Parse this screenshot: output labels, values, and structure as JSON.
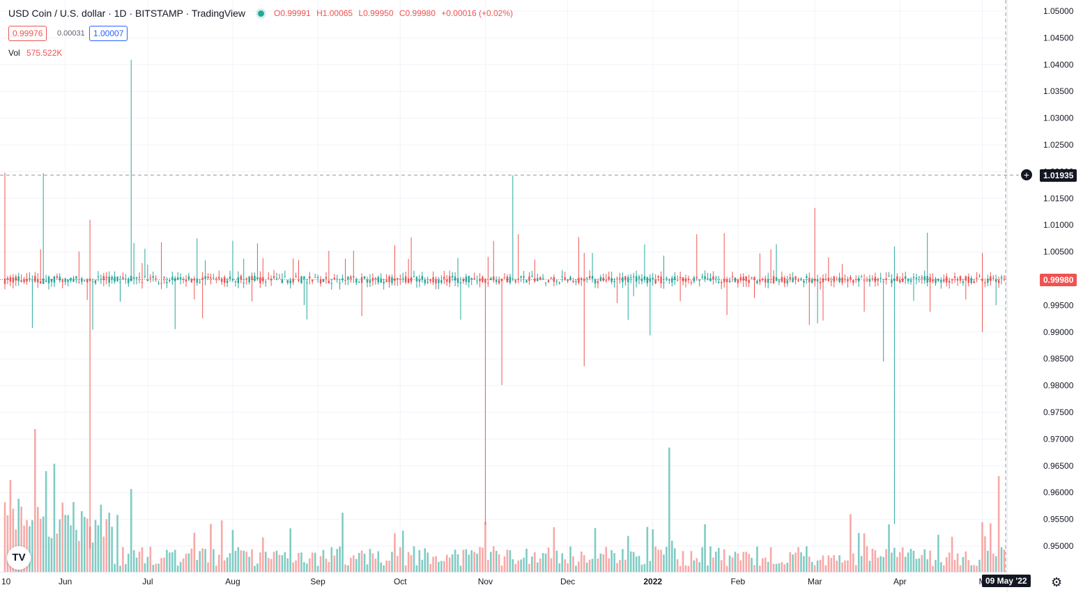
{
  "header": {
    "symbol_title": "USD Coin / U.S. dollar · 1D · BITSTAMP · TradingView",
    "status_color": "#26a69a",
    "open": "O0.99991",
    "high": "H1.00065",
    "low": "L0.99950",
    "close": "C0.99980",
    "change": "+0.00016 (+0.02%)",
    "bid": "0.99976",
    "spread": "0.00031",
    "ask": "1.00007",
    "volume_label": "Vol",
    "volume_value": "575.522K"
  },
  "crosshair": {
    "price_label": "1.01935",
    "price": 1.01935,
    "date_label": "09 May '22"
  },
  "last_price": {
    "label": "0.99980",
    "value": 0.9998
  },
  "icons": {
    "logo": "tradingview-logo-icon",
    "settings": "gear-icon",
    "add": "plus-circle-icon"
  },
  "colors": {
    "up": "#26a69a",
    "down": "#ef5350",
    "up_volume": "#80cbc4",
    "down_volume": "#f7a9a7"
  },
  "chart_data": {
    "type": "candlestick",
    "title": "USD Coin / U.S. dollar · 1D · BITSTAMP",
    "y_axis": {
      "ticks": [
        "1.05000",
        "1.04500",
        "1.04000",
        "1.03500",
        "1.03000",
        "1.02500",
        "1.02000",
        "1.01500",
        "1.01000",
        "1.00500",
        "1.00000",
        "0.99500",
        "0.99000",
        "0.98500",
        "0.98000",
        "0.97500",
        "0.97000",
        "0.96500",
        "0.96000",
        "0.95500",
        "0.95000"
      ],
      "range": [
        0.9465,
        1.0525
      ]
    },
    "x_axis": {
      "ticks": [
        "10",
        "Jun",
        "Jul",
        "Aug",
        "Sep",
        "Oct",
        "Nov",
        "Dec",
        "2022",
        "Feb",
        "Mar",
        "Apr",
        "M"
      ],
      "range": [
        "2021-05-10",
        "2022-05-09"
      ]
    },
    "notable_candles": [
      {
        "date": "2021-05-10",
        "open": 1.0,
        "high": 1.0198,
        "low": 0.998,
        "close": 0.999
      },
      {
        "date": "2021-05-24",
        "open": 0.999,
        "high": 1.0197,
        "low": 0.999,
        "close": 1.0
      },
      {
        "date": "2021-06-10",
        "open": 1.0,
        "high": 1.011,
        "low": 0.9495,
        "close": 0.9995
      },
      {
        "date": "2021-06-11",
        "open": 0.9995,
        "high": 1.0,
        "low": 0.9905,
        "close": 0.9995
      },
      {
        "date": "2021-06-25",
        "open": 0.9995,
        "high": 1.0409,
        "low": 0.9995,
        "close": 1.0005
      },
      {
        "date": "2021-11-01",
        "open": 1.0,
        "high": 1.0,
        "low": 0.9539,
        "close": 0.9992
      },
      {
        "date": "2021-11-07",
        "open": 1.0,
        "high": 1.0,
        "low": 0.9801,
        "close": 0.9995
      },
      {
        "date": "2021-11-11",
        "open": 1.0,
        "high": 1.0193,
        "low": 0.9995,
        "close": 1.0
      },
      {
        "date": "2021-12-07",
        "open": 1.0,
        "high": 1.0048,
        "low": 0.9836,
        "close": 0.9995
      },
      {
        "date": "2022-03-01",
        "open": 1.0,
        "high": 1.0132,
        "low": 0.9985,
        "close": 0.9995
      },
      {
        "date": "2022-03-26",
        "open": 0.9995,
        "high": 1.0,
        "low": 0.9845,
        "close": 0.9995
      },
      {
        "date": "2022-03-30",
        "open": 0.9995,
        "high": 1.006,
        "low": 0.9541,
        "close": 1.0
      },
      {
        "date": "2022-05-01",
        "open": 1.0,
        "high": 1.0048,
        "low": 0.99,
        "close": 0.9995
      },
      {
        "date": "2022-05-09",
        "open": 0.99991,
        "high": 1.00065,
        "low": 0.9995,
        "close": 0.9998
      }
    ],
    "volume_spikes": [
      {
        "date": "2021-05-21",
        "volume_relative": 1.0
      },
      {
        "date": "2021-06-25",
        "volume_relative": 0.58
      },
      {
        "date": "2022-01-07",
        "volume_relative": 0.87
      },
      {
        "date": "2022-05-07",
        "volume_relative": 0.67
      }
    ],
    "grid": true,
    "legend": "top-left"
  }
}
